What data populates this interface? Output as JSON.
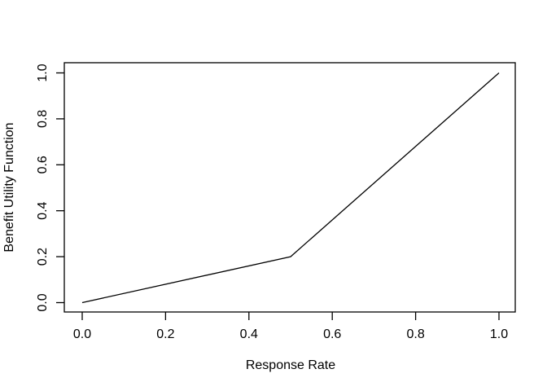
{
  "chart_data": {
    "type": "line",
    "title": "",
    "xlabel": "Response Rate",
    "ylabel": "Benefit Utility Function",
    "x": [
      0.0,
      0.5,
      1.0
    ],
    "y": [
      0.0,
      0.2,
      1.0
    ],
    "xlim": [
      0.0,
      1.0
    ],
    "ylim": [
      0.0,
      1.0
    ],
    "x_ticks": [
      0.0,
      0.2,
      0.4,
      0.6,
      0.8,
      1.0
    ],
    "x_tick_labels": [
      "0.0",
      "0.2",
      "0.4",
      "0.6",
      "0.8",
      "1.0"
    ],
    "y_ticks": [
      0.0,
      0.2,
      0.4,
      0.6,
      0.8,
      1.0
    ],
    "y_tick_labels": [
      "0.0",
      "0.2",
      "0.4",
      "0.6",
      "0.8",
      "1.0"
    ],
    "grid": false,
    "legend": null,
    "line_color": "#000000",
    "axis_color": "#000000",
    "background_color": "#ffffff"
  }
}
